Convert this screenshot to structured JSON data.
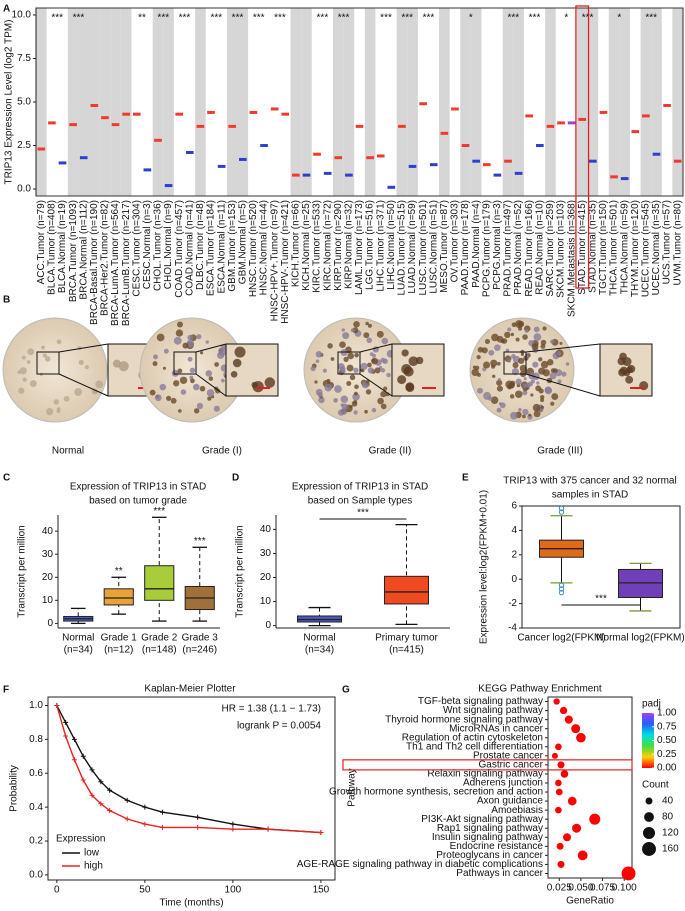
{
  "panel_b": {
    "panel": "B",
    "images": [
      {
        "label": "Normal"
      },
      {
        "label": "Grade (I)"
      },
      {
        "label": "Grade (II)"
      },
      {
        "label": "Grade (III)"
      }
    ]
  },
  "chart_data": [
    {
      "panel": "A",
      "type": "box",
      "ylabel": "TRIP13 Expression Level (log2 TPM)",
      "categories": [
        "ACC.Tumor (n=79)",
        "BLCA.Tumor (n=408)",
        "BLCA.Normal (n=19)",
        "BRCA.Tumor (n=1093)",
        "BRCA.Normal (n=112)",
        "BRCA-Basal.Tumor (n=190)",
        "BRCA-Her2.Tumor (n=82)",
        "BRCA-LumA.Tumor (n=564)",
        "BRCA-LumB.Tumor (n=217)",
        "CESC.Tumor (n=304)",
        "CESC.Normal (n=3)",
        "CHOL.Tumor (n=36)",
        "CHOL.Normal (n=9)",
        "COAD.Tumor (n=457)",
        "COAD.Normal (n=41)",
        "DLBC.Tumor (n=48)",
        "ESCA.Tumor (n=184)",
        "ESCA.Normal (n=11)",
        "GBM.Tumor (n=153)",
        "GBM.Normal (n=5)",
        "HNSC.Tumor (n=520)",
        "HNSC.Normal (n=44)",
        "HNSC-HPV+.Tumor (n=97)",
        "HNSC-HPV-.Tumor (n=421)",
        "KICH.Tumor (n=66)",
        "KICH.Normal (n=25)",
        "KIRC.Tumor (n=533)",
        "KIRC.Normal (n=72)",
        "KIRP.Tumor (n=290)",
        "KIRP.Normal (n=32)",
        "LAML.Tumor (n=173)",
        "LGG.Tumor (n=516)",
        "LIHC.Tumor (n=371)",
        "LIHC.Normal (n=50)",
        "LUAD.Tumor (n=515)",
        "LUAD.Normal (n=59)",
        "LUSC.Tumor (n=501)",
        "LUSC.Normal (n=51)",
        "MESO.Tumor (n=87)",
        "OV.Tumor (n=303)",
        "PAAD.Tumor (n=178)",
        "PAAD.Normal (n=4)",
        "PCPG.Tumor (n=179)",
        "PCPG.Normal (n=3)",
        "PRAD.Tumor (n=497)",
        "PRAD.Normal (n=52)",
        "READ.Tumor (n=166)",
        "READ.Normal (n=10)",
        "SARC.Tumor (n=259)",
        "SKCM.Tumor (n=103)",
        "SKCM.Metastasis (n=368)",
        "STAD.Tumor (n=415)",
        "STAD.Normal (n=35)",
        "TGCT.Tumor (n=150)",
        "THCA.Tumor (n=501)",
        "THCA.Normal (n=59)",
        "THYM.Tumor (n=120)",
        "UCEC.Tumor (n=545)",
        "UCEC.Normal (n=35)",
        "UCS.Tumor (n=57)",
        "UVM.Tumor (n=80)"
      ],
      "values": [
        2.3,
        3.8,
        1.5,
        3.7,
        1.8,
        4.8,
        4.1,
        3.7,
        4.3,
        4.3,
        1.1,
        2.8,
        0.2,
        4.3,
        2.1,
        3.6,
        4.4,
        1.3,
        3.6,
        1.7,
        4.4,
        2.5,
        4.6,
        4.3,
        0.8,
        0.8,
        2.0,
        0.9,
        1.8,
        0.8,
        3.6,
        1.8,
        1.9,
        0.1,
        3.6,
        1.3,
        4.9,
        1.4,
        3.2,
        4.6,
        2.5,
        1.6,
        1.4,
        0.8,
        1.6,
        0.9,
        4.2,
        2.5,
        3.6,
        3.8,
        3.8,
        4.0,
        1.6,
        4.4,
        0.7,
        0.6,
        3.3,
        4.2,
        2.0,
        4.8,
        1.6
      ],
      "colors": [
        "#f03a2e",
        "#f03a2e",
        "#2d3fd0",
        "#f03a2e",
        "#2d3fd0",
        "#f03a2e",
        "#f03a2e",
        "#f03a2e",
        "#f03a2e",
        "#f03a2e",
        "#2d3fd0",
        "#f03a2e",
        "#2d3fd0",
        "#f03a2e",
        "#2d3fd0",
        "#f03a2e",
        "#f03a2e",
        "#2d3fd0",
        "#f03a2e",
        "#2d3fd0",
        "#f03a2e",
        "#2d3fd0",
        "#f03a2e",
        "#f03a2e",
        "#f03a2e",
        "#2d3fd0",
        "#f03a2e",
        "#2d3fd0",
        "#f03a2e",
        "#2d3fd0",
        "#f03a2e",
        "#f03a2e",
        "#f03a2e",
        "#2d3fd0",
        "#f03a2e",
        "#2d3fd0",
        "#f03a2e",
        "#2d3fd0",
        "#f03a2e",
        "#f03a2e",
        "#f03a2e",
        "#2d3fd0",
        "#f03a2e",
        "#2d3fd0",
        "#f03a2e",
        "#2d3fd0",
        "#f03a2e",
        "#2d3fd0",
        "#f03a2e",
        "#f03a2e",
        "#a040e8",
        "#f03a2e",
        "#2d3fd0",
        "#f03a2e",
        "#f03a2e",
        "#2d3fd0",
        "#f03a2e",
        "#f03a2e",
        "#2d3fd0",
        "#f03a2e",
        "#f03a2e"
      ],
      "significance": [
        null,
        "***",
        null,
        "***",
        null,
        null,
        null,
        null,
        null,
        "**",
        null,
        "***",
        null,
        "***",
        null,
        null,
        "***",
        null,
        "***",
        null,
        "***",
        null,
        "***",
        null,
        null,
        null,
        "***",
        null,
        "***",
        null,
        null,
        null,
        "***",
        null,
        "***",
        null,
        "***",
        null,
        null,
        null,
        "*",
        null,
        null,
        null,
        "***",
        null,
        "***",
        null,
        null,
        "*",
        null,
        "***",
        null,
        null,
        "*",
        null,
        null,
        "***",
        null,
        null,
        null
      ],
      "ylim": [
        -0.4,
        10.4
      ],
      "yticks": [
        {
          "value": 0,
          "label": "0.0"
        },
        2.5,
        {
          "value": 5,
          "label": "5.0"
        },
        7.5,
        {
          "value": 10,
          "label": "10.0"
        }
      ]
    },
    {
      "panel": "C",
      "type": "box",
      "title": [
        "Expression of TRIP13 in STAD",
        "based on tumor grade"
      ],
      "ylabel": "Transcript per million",
      "categories": [
        "Normal",
        "Grade 1",
        "Grade 2",
        "Grade 3"
      ],
      "n_labels": [
        "(n=34)",
        "(n=12)",
        "(n=148)",
        "(n=246)"
      ],
      "whisker_low": [
        0,
        4,
        1,
        1
      ],
      "q1": [
        1,
        8,
        10,
        6
      ],
      "median": [
        2,
        11,
        15,
        11
      ],
      "q3": [
        3,
        15,
        25,
        16
      ],
      "whisker_high": [
        6.5,
        20,
        46,
        33
      ],
      "colors": [
        "#4b5cc4",
        "#e8a23a",
        "#a8cc3a",
        "#a0703a"
      ],
      "significance": [
        null,
        "**",
        "***",
        "***"
      ],
      "ylim": [
        -2,
        47
      ],
      "yticks": [
        0,
        10,
        20,
        30,
        40
      ]
    },
    {
      "panel": "D",
      "type": "box",
      "title": [
        "Expression of TRIP13 in STAD",
        "based on Sample types"
      ],
      "ylabel": "Transcript per million",
      "categories": [
        "Normal",
        "Primary tumor"
      ],
      "n_labels": [
        "(n=34)",
        "(n=415)"
      ],
      "whisker_low": [
        0,
        0.5
      ],
      "q1": [
        1.5,
        9
      ],
      "median": [
        2.5,
        14
      ],
      "q3": [
        4,
        20.5
      ],
      "whisker_high": [
        7.5,
        42
      ],
      "colors": [
        "#4b5cc4",
        "#f04a20"
      ],
      "significance": "***",
      "ylim": [
        -1,
        46
      ],
      "yticks": [
        0,
        10,
        20,
        30,
        40
      ]
    },
    {
      "panel": "E",
      "type": "box",
      "title": [
        "TRIP13 with 375 cancer and 32 normal",
        "samples in STAD"
      ],
      "ylabel": "Expression level:log2(FPKM+0.01)",
      "categories": [
        "Cancer log2(FPKM)",
        "Normal log2(FPKM)"
      ],
      "whisker_low": [
        -0.3,
        -2.6
      ],
      "q1": [
        1.8,
        -1.5
      ],
      "median": [
        2.5,
        -0.3
      ],
      "q3": [
        3.2,
        0.8
      ],
      "whisker_high": [
        5.2,
        1.3
      ],
      "outliers": [
        [
          5.5,
          5.8,
          -0.5,
          -0.8,
          -1.1
        ],
        []
      ],
      "colors": [
        "#e06a1c",
        "#7040b8"
      ],
      "significance": "***",
      "ylim": [
        -4,
        6
      ],
      "yticks": [
        -4,
        -2,
        0,
        2,
        4,
        6
      ]
    },
    {
      "panel": "F",
      "type": "km",
      "title": "Kaplan-Meier Plotter",
      "xlabel": "Time (months)",
      "ylabel": "Probability",
      "annotations": [
        "HR = 1.38 (1.1 − 1.73)",
        "logrank P = 0.0054"
      ],
      "legend_title": "Expression",
      "series": [
        {
          "name": "low",
          "color": "#111111",
          "x": [
            0,
            5,
            10,
            15,
            20,
            25,
            30,
            40,
            50,
            60,
            80,
            100,
            120,
            150
          ],
          "values": [
            1,
            0.9,
            0.8,
            0.7,
            0.62,
            0.55,
            0.5,
            0.44,
            0.4,
            0.37,
            0.34,
            0.3,
            0.27,
            0.25
          ]
        },
        {
          "name": "high",
          "color": "#e8231e",
          "x": [
            0,
            5,
            10,
            15,
            20,
            25,
            30,
            40,
            50,
            60,
            80,
            100,
            120,
            150
          ],
          "values": [
            1,
            0.82,
            0.68,
            0.56,
            0.47,
            0.42,
            0.38,
            0.33,
            0.3,
            0.28,
            0.28,
            0.27,
            0.27,
            0.25
          ]
        }
      ],
      "xlim": [
        -5,
        158
      ],
      "xticks": [
        0,
        50,
        100,
        150
      ],
      "ylim": [
        -0.03,
        1.05
      ],
      "yticks": [
        {
          "value": 0,
          "label": "0.0"
        },
        0.2,
        0.4,
        0.6,
        0.8,
        {
          "value": 1,
          "label": "1.0"
        }
      ]
    },
    {
      "panel": "G",
      "type": "dot",
      "title": "KEGG Pathway Enrichment",
      "xlabel": "GeneRatio",
      "ylabel": "Pathway",
      "categories": [
        "TGF-beta signaling pathway",
        "Wnt signaling pathway",
        "Thyroid hormone signaling pathway",
        "MicroRNAs in cancer",
        "Regulation of actin cytoskeleton",
        "Th1 and Th2 cell differentiation",
        "Prostate cancer",
        "Gastric cancer",
        "Relaxin signaling pathway",
        "Adherens junction",
        "Growth hormone synthesis, secretion and action",
        "Axon guidance",
        "Amoebiasis",
        "PI3K-Akt signaling pathway",
        "Rap1 signaling pathway",
        "Insulin signaling pathway",
        "Endocrine resistance",
        "Proteoglycans in cancer",
        "AGE-RAGE signaling pathway in diabetic complications",
        "Pathways in cancer"
      ],
      "gene_ratio": [
        0.022,
        0.03,
        0.036,
        0.044,
        0.05,
        0.024,
        0.02,
        0.027,
        0.031,
        0.024,
        0.025,
        0.04,
        0.024,
        0.066,
        0.045,
        0.034,
        0.026,
        0.052,
        0.027,
        0.105
      ],
      "count": [
        33,
        45,
        55,
        67,
        76,
        36,
        30,
        41,
        47,
        36,
        38,
        61,
        36,
        100,
        68,
        52,
        40,
        79,
        41,
        160
      ],
      "padj": [
        0,
        0,
        0,
        0,
        0,
        0,
        0,
        0,
        0,
        0,
        0,
        0,
        0,
        0,
        0,
        0,
        0,
        0,
        0,
        0
      ],
      "xlim": [
        0.012,
        0.109
      ],
      "xticks": [
        {
          "value": 0.025,
          "label": "0.025"
        },
        {
          "value": 0.05,
          "label": "0.050"
        },
        {
          "value": 0.075,
          "label": "0.075"
        },
        {
          "value": 0.1,
          "label": "0.100"
        }
      ],
      "color_title": "padj",
      "colormap": [
        "#ff0000",
        "#ffd000",
        "#40e040",
        "#00e0e0",
        "#2060ff",
        "#a040ff"
      ],
      "clim": [
        0,
        1
      ],
      "cticks": [
        {
          "value": 1,
          "label": "1.00"
        },
        0.75,
        {
          "value": 0.5,
          "label": "0.50"
        },
        0.25,
        {
          "value": 0,
          "label": "0.00"
        }
      ],
      "size_title": "Count",
      "size_legend": [
        40,
        80,
        120,
        160
      ]
    }
  ]
}
